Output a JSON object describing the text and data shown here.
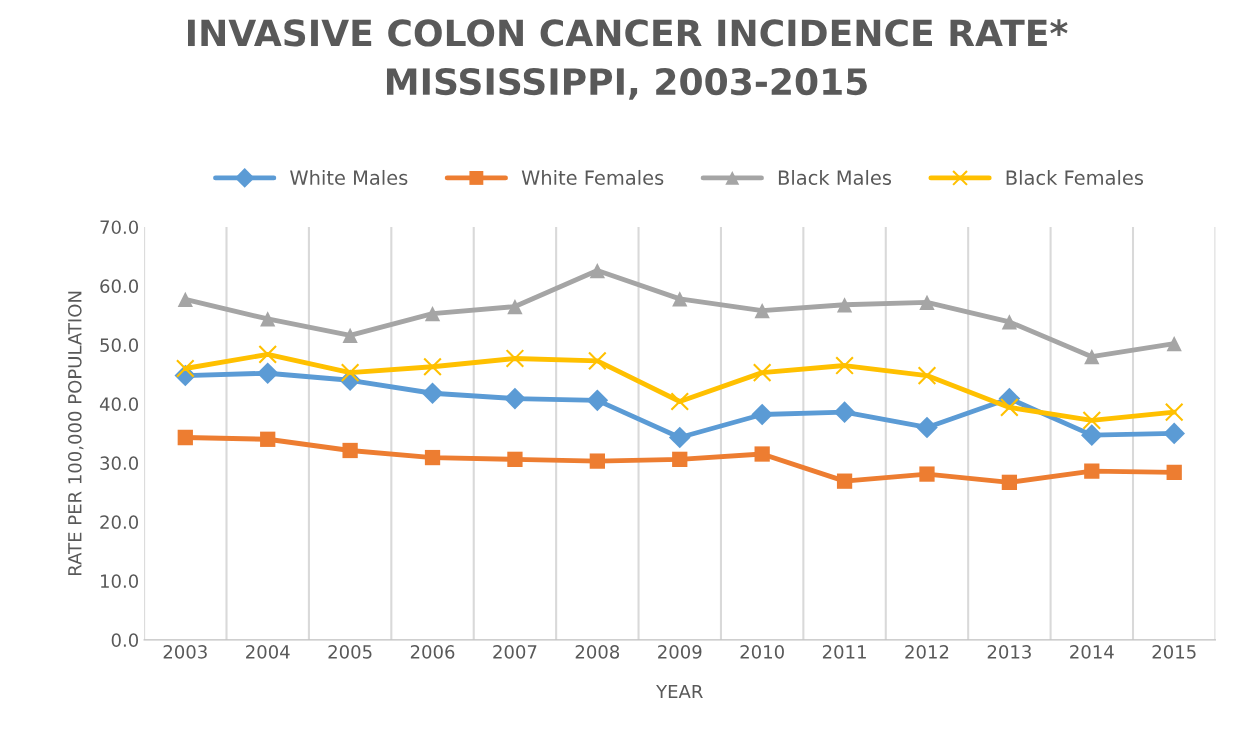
{
  "chart_data": {
    "type": "line",
    "title": "INVASIVE COLON CANCER INCIDENCE RATE*\nMISSISSIPPI, 2003-2015",
    "xlabel": "YEAR",
    "ylabel": "RATE PER 100,000 POPULATION",
    "categories": [
      "2003",
      "2004",
      "2005",
      "2006",
      "2007",
      "2008",
      "2009",
      "2010",
      "2011",
      "2012",
      "2013",
      "2014",
      "2015"
    ],
    "series": [
      {
        "name": "White Males",
        "color": "#5b9bd5",
        "marker": "diamond",
        "values": [
          44.8,
          45.2,
          44.0,
          41.8,
          40.9,
          40.6,
          34.3,
          38.2,
          38.6,
          36.0,
          40.9,
          34.7,
          35.0
        ]
      },
      {
        "name": "White Females",
        "color": "#ed7d31",
        "marker": "square",
        "values": [
          34.3,
          34.0,
          32.1,
          30.9,
          30.6,
          30.3,
          30.6,
          31.5,
          26.9,
          28.1,
          26.7,
          28.6,
          28.4
        ]
      },
      {
        "name": "Black Males",
        "color": "#a5a5a5",
        "marker": "triangle",
        "values": [
          57.7,
          54.4,
          51.6,
          55.3,
          56.5,
          62.6,
          57.8,
          55.8,
          56.8,
          57.2,
          53.9,
          48.0,
          50.2
        ]
      },
      {
        "name": "Black Females",
        "color": "#ffc000",
        "marker": "cross",
        "values": [
          46.0,
          48.4,
          45.3,
          46.3,
          47.7,
          47.3,
          40.4,
          45.3,
          46.5,
          44.8,
          39.4,
          37.2,
          38.6
        ]
      }
    ],
    "ylim": [
      0,
      70
    ],
    "yticks": [
      {
        "value": 0,
        "label": "0.0"
      },
      {
        "value": 10,
        "label": "10.0"
      },
      {
        "value": 20,
        "label": "20.0"
      },
      {
        "value": 30,
        "label": "30.0"
      },
      {
        "value": 40,
        "label": "40.0"
      },
      {
        "value": 50,
        "label": "50.0"
      },
      {
        "value": 60,
        "label": "60.0"
      },
      {
        "value": 70,
        "label": "70.0"
      }
    ],
    "grid": "x",
    "legend": "top",
    "line_style": "solid"
  }
}
